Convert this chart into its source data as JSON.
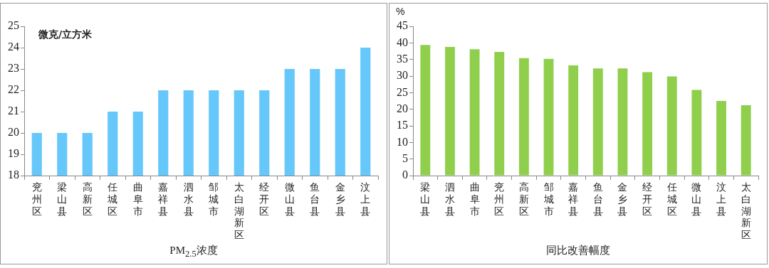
{
  "chart_data": [
    {
      "type": "bar",
      "xlabel": "PM$_{2.5}$浓度",
      "ylabel": "微克/立方米",
      "categories": [
        "兖州区",
        "梁山县",
        "高新区",
        "任城区",
        "曲阜市",
        "嘉祥县",
        "泗水县",
        "邹城市",
        "太白湖新区",
        "经开区",
        "微山县",
        "鱼台县",
        "金乡县",
        "汶上县"
      ],
      "values": [
        20,
        20,
        20,
        21,
        21,
        22,
        22,
        22,
        22,
        22,
        23,
        23,
        23,
        24
      ],
      "color": "#66c8fa",
      "ylim": [
        18,
        25
      ],
      "yticks": [
        18,
        19,
        20,
        21,
        22,
        23,
        24,
        25
      ],
      "grid": false,
      "legend": false
    },
    {
      "type": "bar",
      "xlabel": "同比改善幅度",
      "ylabel": "%",
      "categories": [
        "梁山县",
        "泗水县",
        "曲阜市",
        "兖州区",
        "高新区",
        "邹城市",
        "嘉祥县",
        "鱼台县",
        "金乡县",
        "经开区",
        "任城区",
        "微山县",
        "汶上县",
        "太白湖新区"
      ],
      "values": [
        39.4,
        38.8,
        38.1,
        37.3,
        35.4,
        35.2,
        33.2,
        32.3,
        32.3,
        31.2,
        29.9,
        25.8,
        22.5,
        21.2
      ],
      "color": "#8fcf4c",
      "ylim": [
        0,
        45
      ],
      "yticks": [
        0,
        5,
        10,
        15,
        20,
        25,
        30,
        35,
        40,
        45
      ],
      "grid": false,
      "legend": false
    }
  ]
}
